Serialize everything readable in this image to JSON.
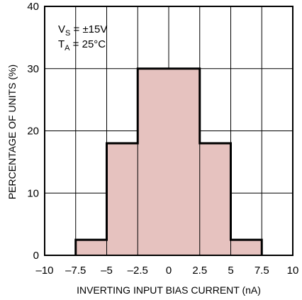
{
  "chart_data": {
    "type": "bar",
    "title": "",
    "xlabel": "INVERTING INPUT BIAS CURRENT (nA)",
    "ylabel": "PERCENTAGE OF UNITS (%)",
    "xlim": [
      -10,
      10
    ],
    "ylim": [
      0,
      40
    ],
    "xticks": [
      -10,
      -7.5,
      -5,
      -2.5,
      0,
      2.5,
      5,
      7.5,
      10
    ],
    "xtick_labels": [
      "–10",
      "–7.5",
      "–5",
      "–2.5",
      "0",
      "2.5",
      "5",
      "7.5",
      "10"
    ],
    "yticks": [
      0,
      10,
      20,
      30,
      40
    ],
    "ytick_labels": [
      "0",
      "10",
      "20",
      "30",
      "40"
    ],
    "grid": true,
    "bins": [
      {
        "x0": -7.5,
        "x1": -5,
        "value": 2.5
      },
      {
        "x0": -5,
        "x1": -2.5,
        "value": 18
      },
      {
        "x0": -2.5,
        "x1": 2.5,
        "value": 30
      },
      {
        "x0": 2.5,
        "x1": 5,
        "value": 18
      },
      {
        "x0": 5,
        "x1": 7.5,
        "value": 2.5
      }
    ],
    "annotations": [
      {
        "main": "V",
        "sub": "S",
        "rest": " = ±15V"
      },
      {
        "main": "T",
        "sub": "A",
        "rest": " = 25°C"
      }
    ],
    "colors": {
      "fill": "#e6c2bf",
      "outline": "#000000",
      "grid": "#000000"
    }
  }
}
